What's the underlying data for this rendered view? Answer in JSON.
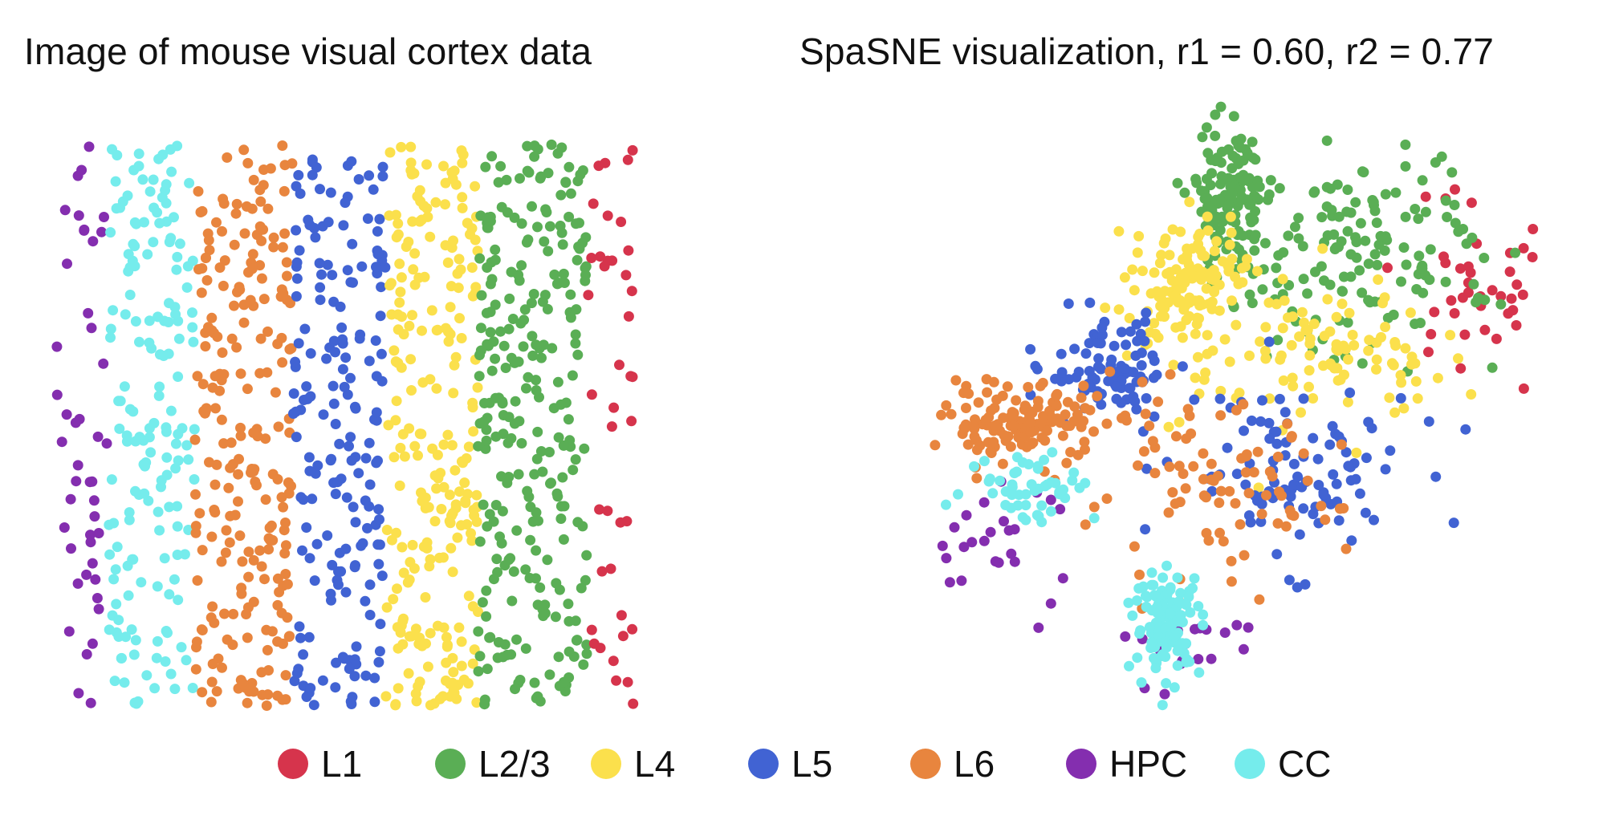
{
  "colors": {
    "L1": "#d6344c",
    "L2/3": "#5aae55",
    "L4": "#fbe04c",
    "L5": "#4163d3",
    "L6": "#e8853e",
    "HPC": "#842eaf",
    "CC": "#75ecec"
  },
  "chart_data": [
    {
      "type": "scatter",
      "title": "Image of mouse visual cortex data",
      "xlabel": "",
      "ylabel": "",
      "axes": "hidden",
      "grid": false,
      "xlim": [
        0,
        100
      ],
      "ylim": [
        0,
        100
      ],
      "layer_bands": [
        {
          "name": "HPC",
          "x_range": [
            0,
            9
          ]
        },
        {
          "name": "CC",
          "x_range": [
            9,
            24
          ]
        },
        {
          "name": "L6",
          "x_range": [
            24,
            41
          ]
        },
        {
          "name": "L5",
          "x_range": [
            41,
            57
          ]
        },
        {
          "name": "L4",
          "x_range": [
            57,
            73
          ]
        },
        {
          "name": "L2/3",
          "x_range": [
            73,
            92
          ]
        },
        {
          "name": "L1",
          "x_range": [
            92,
            100
          ]
        }
      ],
      "approx_point_counts": {
        "HPC": 45,
        "CC": 170,
        "L6": 230,
        "L5": 190,
        "L4": 240,
        "L2/3": 270,
        "L1": 40
      }
    },
    {
      "type": "scatter",
      "title": "SpaSNE visualization, r1 = 0.60, r2 = 0.77",
      "xlabel": "",
      "ylabel": "",
      "axes": "hidden",
      "grid": false,
      "xlim": [
        0,
        100
      ],
      "ylim": [
        0,
        100
      ],
      "series": [
        {
          "name": "L1",
          "clusters": [
            {
              "cx": 82,
              "cy": 70,
              "sx": 7,
              "sy": 8,
              "n": 40
            }
          ]
        },
        {
          "name": "L2/3",
          "clusters": [
            {
              "cx": 46,
              "cy": 84,
              "sx": 3,
              "sy": 6,
              "n": 120
            },
            {
              "cx": 63,
              "cy": 74,
              "sx": 11,
              "sy": 8,
              "n": 150
            }
          ]
        },
        {
          "name": "L4",
          "clusters": [
            {
              "cx": 39,
              "cy": 70,
              "sx": 4,
              "sy": 5,
              "n": 130
            },
            {
              "cx": 58,
              "cy": 60,
              "sx": 10,
              "sy": 6,
              "n": 110
            }
          ]
        },
        {
          "name": "L5",
          "clusters": [
            {
              "cx": 27,
              "cy": 56,
              "sx": 5,
              "sy": 4,
              "n": 90
            },
            {
              "cx": 55,
              "cy": 40,
              "sx": 9,
              "sy": 7,
              "n": 100
            }
          ]
        },
        {
          "name": "L6",
          "clusters": [
            {
              "cx": 14,
              "cy": 48,
              "sx": 6,
              "sy": 3,
              "n": 140
            },
            {
              "cx": 42,
              "cy": 36,
              "sx": 10,
              "sy": 7,
              "n": 90
            }
          ]
        },
        {
          "name": "HPC",
          "clusters": [
            {
              "cx": 10,
              "cy": 28,
              "sx": 6,
              "sy": 5,
              "n": 25
            },
            {
              "cx": 38,
              "cy": 12,
              "sx": 6,
              "sy": 4,
              "n": 20
            }
          ]
        },
        {
          "name": "CC",
          "clusters": [
            {
              "cx": 36,
              "cy": 16,
              "sx": 2.5,
              "sy": 4,
              "n": 120
            },
            {
              "cx": 15,
              "cy": 38,
              "sx": 5,
              "sy": 3,
              "n": 50
            }
          ]
        }
      ]
    }
  ],
  "legend": {
    "placement": "bottom",
    "items": [
      "L1",
      "L2/3",
      "L4",
      "L5",
      "L6",
      "HPC",
      "CC"
    ]
  }
}
